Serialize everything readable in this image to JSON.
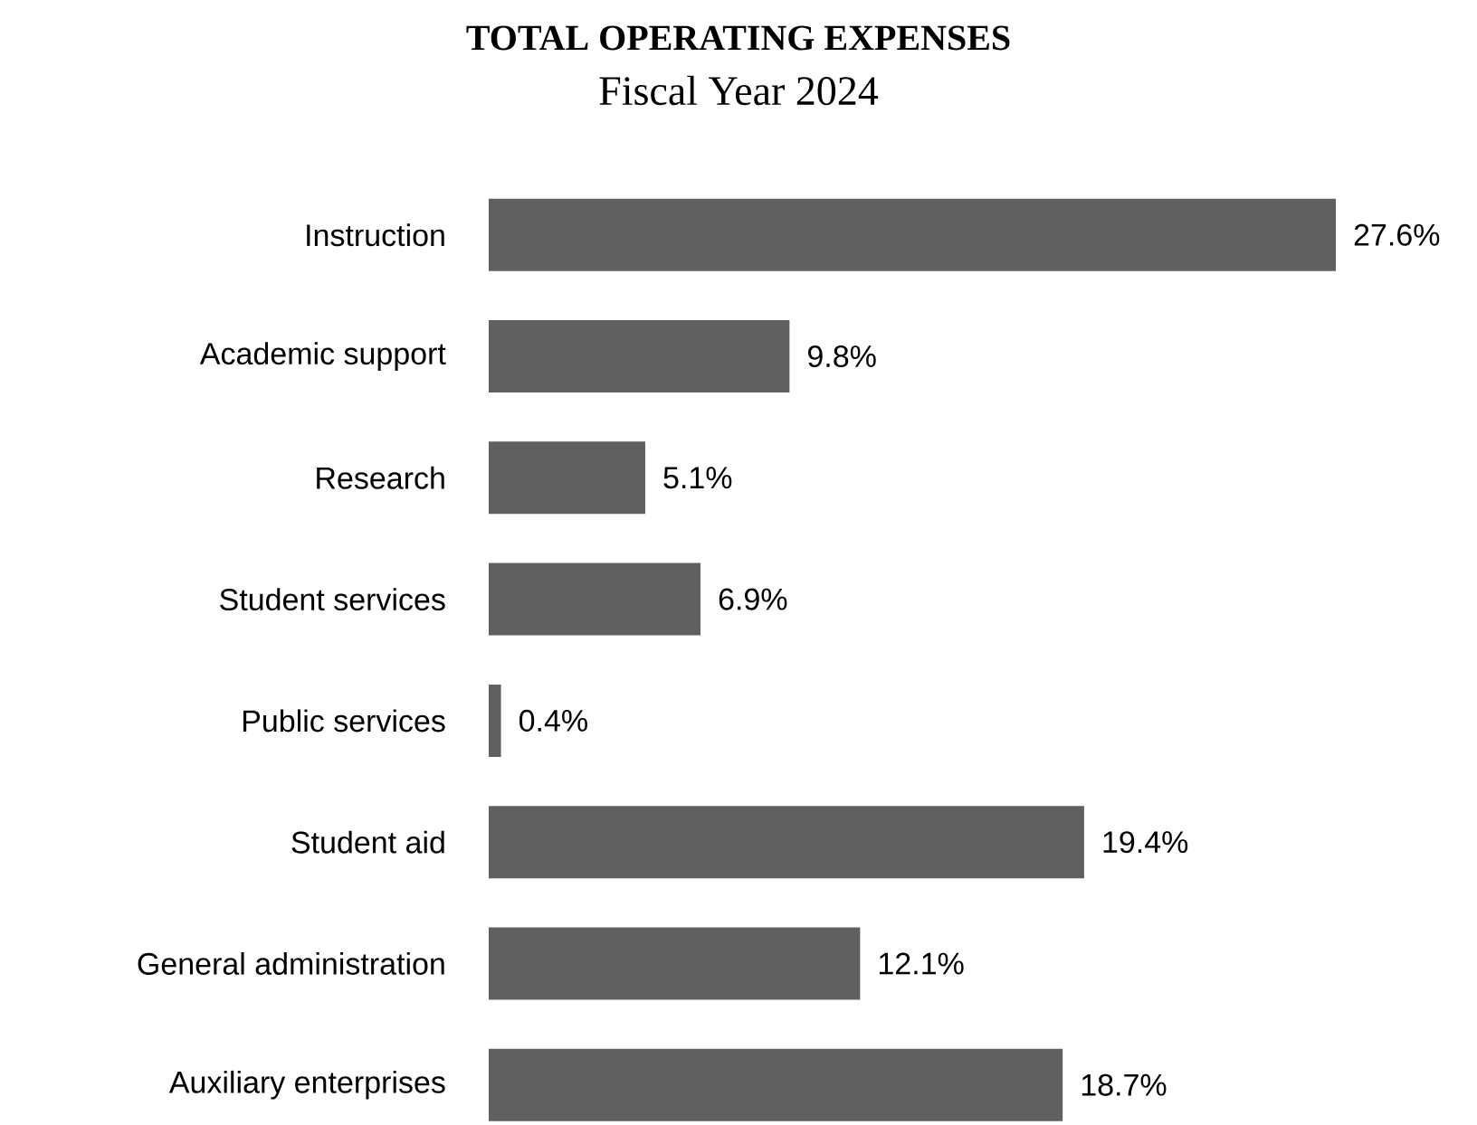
{
  "chart_data": {
    "type": "bar",
    "orientation": "horizontal",
    "title": "TOTAL OPERATING EXPENSES",
    "subtitle": "Fiscal Year 2024",
    "categories": [
      "Instruction",
      "Academic support",
      "Research",
      "Student services",
      "Public services",
      "Student aid",
      "General administration",
      "Auxiliary enterprises"
    ],
    "values": [
      27.6,
      9.8,
      5.1,
      6.9,
      0.4,
      19.4,
      12.1,
      18.7
    ],
    "value_labels": [
      "27.6%",
      "9.8%",
      "5.1%",
      "6.9%",
      "0.4%",
      "19.4%",
      "12.1%",
      "18.7%"
    ],
    "color": "#606060",
    "tick_labels": "y"
  }
}
